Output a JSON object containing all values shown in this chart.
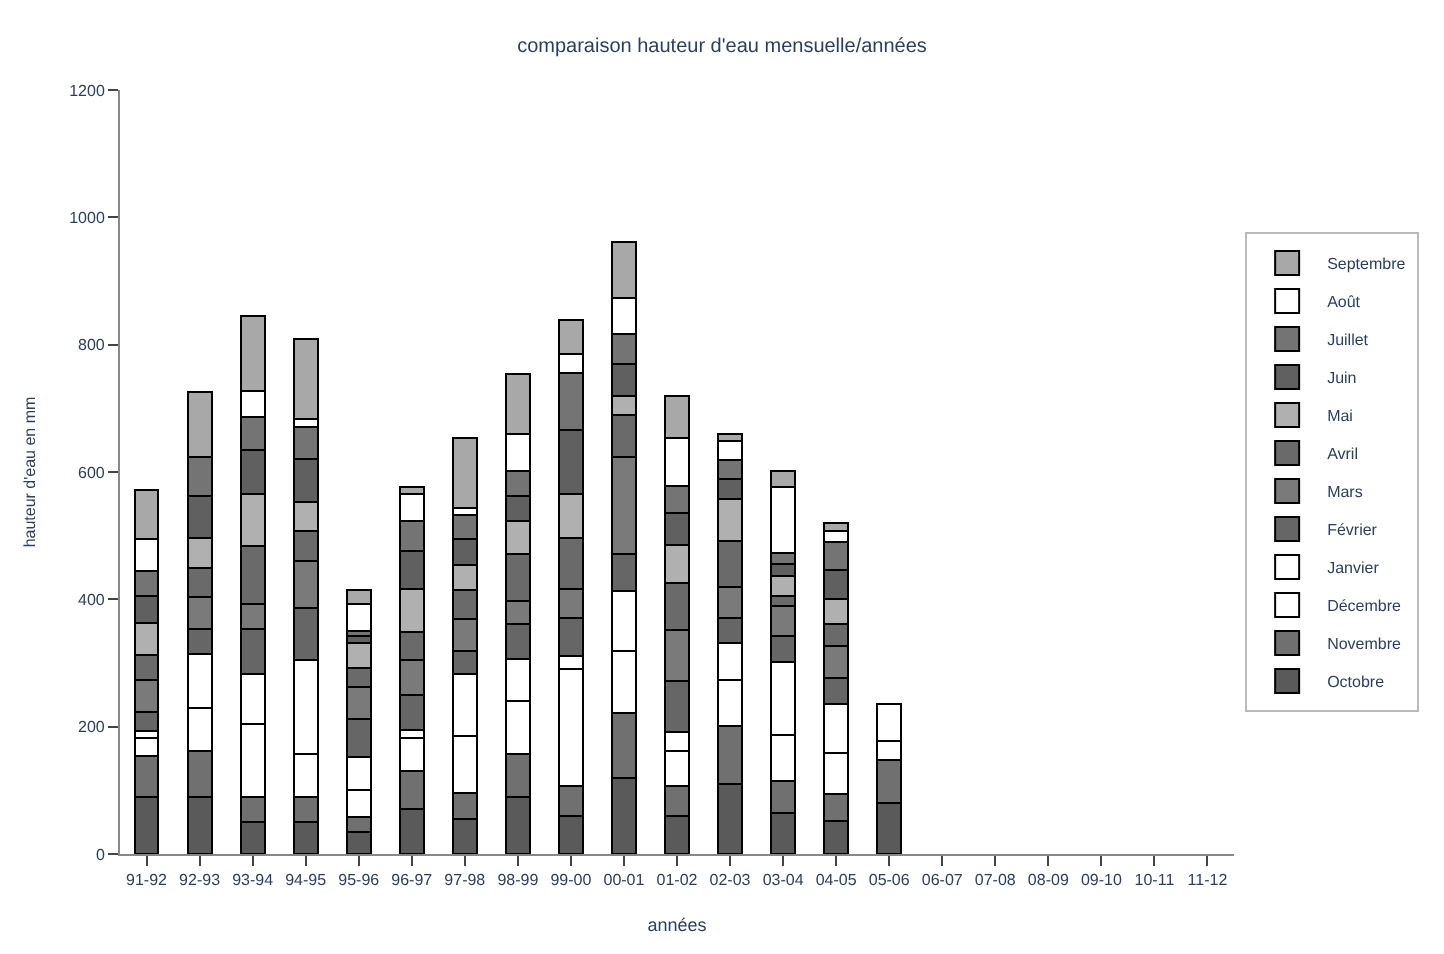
{
  "chart_data": {
    "type": "bar",
    "stacked": true,
    "title": "comparaison hauteur d'eau mensuelle/années",
    "xlabel": "années",
    "ylabel": "hauteur d'eau en mm",
    "categories": [
      "91-92",
      "92-93",
      "93-94",
      "94-95",
      "95-96",
      "96-97",
      "97-98",
      "98-99",
      "99-00",
      "00-01",
      "01-02",
      "02-03",
      "03-04",
      "04-05",
      "05-06",
      "06-07",
      "07-08",
      "08-09",
      "09-10",
      "10-11",
      "11-12"
    ],
    "ylim": [
      0,
      1200
    ],
    "yticks": [
      0,
      200,
      400,
      600,
      800,
      1000,
      1200
    ],
    "legend": "right",
    "series": [
      {
        "name": "Octobre",
        "color": "#5a5a5a",
        "values": [
          90,
          90,
          50,
          50,
          35,
          70,
          55,
          90,
          60,
          120,
          60,
          110,
          65,
          52,
          80,
          null,
          null,
          null,
          null,
          null,
          null
        ]
      },
      {
        "name": "Novembre",
        "color": "#707070",
        "values": [
          64,
          72,
          39,
          39,
          23,
          61,
          41,
          67,
          47,
          102,
          47,
          91,
          50,
          42,
          67,
          null,
          null,
          null,
          null,
          null,
          null
        ]
      },
      {
        "name": "Décembre",
        "color": "#ffffff",
        "values": [
          29,
          68,
          115,
          68,
          42,
          52,
          90,
          83,
          184,
          97,
          55,
          72,
          72,
          65,
          31,
          null,
          null,
          null,
          null,
          null,
          null
        ]
      },
      {
        "name": "Janvier",
        "color": "#ffffff",
        "values": [
          10,
          84,
          79,
          147,
          52,
          11,
          97,
          66,
          20,
          94,
          30,
          58,
          115,
          77,
          58,
          null,
          null,
          null,
          null,
          null,
          null
        ]
      },
      {
        "name": "Février",
        "color": "#666666",
        "values": [
          30,
          40,
          70,
          83,
          60,
          55,
          36,
          55,
          60,
          58,
          80,
          40,
          40,
          40,
          null,
          null,
          null,
          null,
          null,
          null,
          null
        ]
      },
      {
        "name": "Mars",
        "color": "#7a7a7a",
        "values": [
          50,
          50,
          40,
          74,
          50,
          55,
          50,
          37,
          45,
          152,
          80,
          48,
          47,
          50,
          null,
          null,
          null,
          null,
          null,
          null,
          null
        ]
      },
      {
        "name": "Avril",
        "color": "#6a6a6a",
        "values": [
          40,
          45,
          90,
          47,
          30,
          44,
          45,
          73,
          80,
          66,
          73,
          73,
          17,
          35,
          null,
          null,
          null,
          null,
          null,
          null,
          null
        ]
      },
      {
        "name": "Mai",
        "color": "#b0b0b0",
        "values": [
          50,
          48,
          82,
          45,
          40,
          68,
          40,
          52,
          70,
          31,
          60,
          65,
          30,
          40,
          null,
          null,
          null,
          null,
          null,
          null,
          null
        ]
      },
      {
        "name": "Juin",
        "color": "#606060",
        "values": [
          42,
          66,
          70,
          67,
          10,
          60,
          40,
          40,
          100,
          50,
          50,
          32,
          20,
          45,
          null,
          null,
          null,
          null,
          null,
          null,
          null
        ]
      },
      {
        "name": "Juillet",
        "color": "#747474",
        "values": [
          40,
          60,
          51,
          50,
          9,
          47,
          38,
          39,
          90,
          47,
          43,
          30,
          17,
          44,
          null,
          null,
          null,
          null,
          null,
          null,
          null
        ]
      },
      {
        "name": "Août",
        "color": "#ffffff",
        "values": [
          49,
          0,
          42,
          14,
          42,
          42,
          12,
          58,
          30,
          57,
          76,
          29,
          103,
          18,
          null,
          null,
          null,
          null,
          null,
          null,
          null
        ]
      },
      {
        "name": "Septembre",
        "color": "#a8a8a8",
        "values": [
          77,
          103,
          117,
          125,
          21,
          11,
          110,
          94,
          52,
          87,
          66,
          11,
          26,
          12,
          null,
          null,
          null,
          null,
          null,
          null,
          null
        ]
      }
    ]
  }
}
